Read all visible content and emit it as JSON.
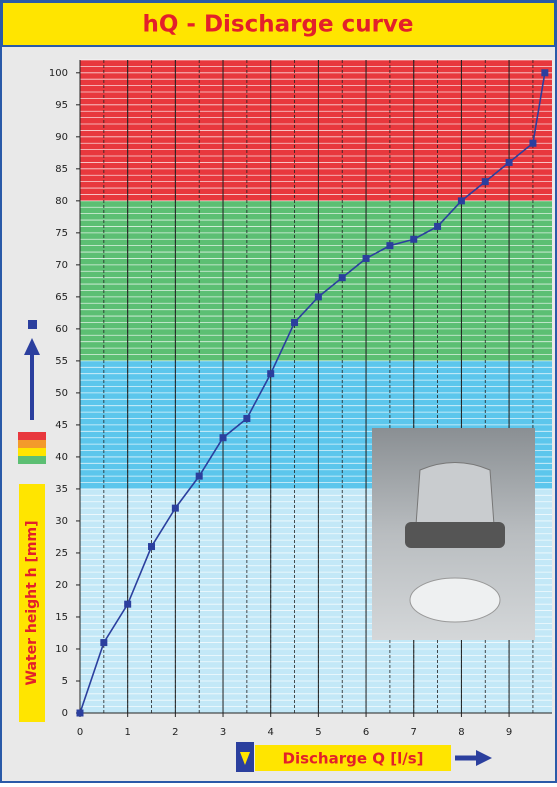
{
  "chart_data": {
    "type": "line",
    "title": "hQ - Discharge curve",
    "x_label": "Discharge Q [l/s]",
    "y_label": "Water height h [mm]",
    "xlim": [
      0,
      9.9
    ],
    "ylim": [
      0,
      102
    ],
    "xticks": [
      0,
      1,
      2,
      3,
      4,
      5,
      6,
      7,
      8,
      9
    ],
    "yticks": [
      0,
      5,
      10,
      15,
      20,
      25,
      30,
      35,
      40,
      45,
      50,
      55,
      60,
      65,
      70,
      75,
      80,
      85,
      90,
      95,
      100
    ],
    "bands": [
      {
        "from": 80,
        "to": 102,
        "color": "#e8383d"
      },
      {
        "from": 55,
        "to": 80,
        "color": "#5cbf73"
      },
      {
        "from": 35,
        "to": 55,
        "color": "#5cc6ec"
      },
      {
        "from": 0,
        "to": 35,
        "color": "#c3e8f7"
      }
    ],
    "series": [
      {
        "color": "#2b3f9e",
        "x": [
          0,
          0.5,
          1,
          1.5,
          2,
          2.5,
          3,
          3.5,
          4,
          4.5,
          5,
          5.5,
          6,
          6.5,
          7,
          7.5,
          8,
          8.5,
          9,
          9.5,
          9.75
        ],
        "values": [
          0,
          11,
          17,
          26,
          32,
          37,
          43,
          46,
          53,
          61,
          65,
          68,
          71,
          73,
          74,
          76,
          80,
          83,
          86,
          89,
          100
        ]
      }
    ]
  }
}
